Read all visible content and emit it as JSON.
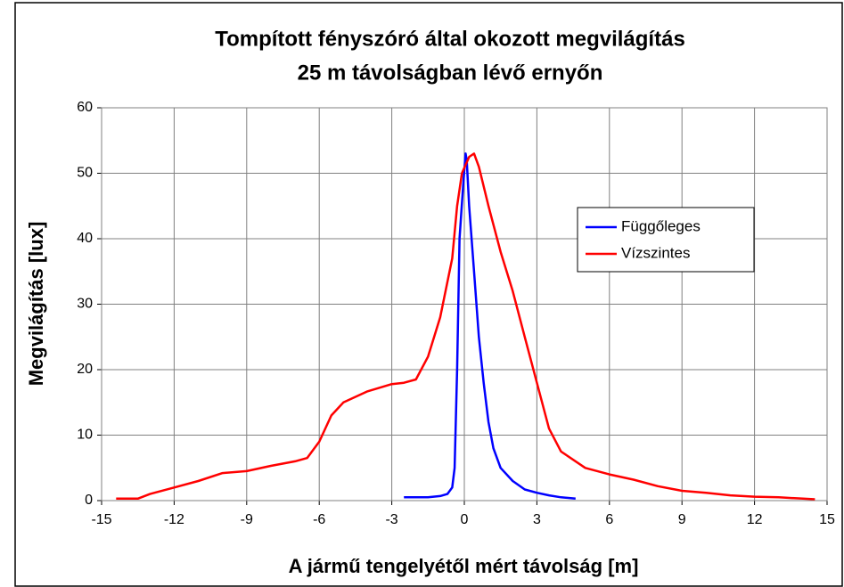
{
  "chart_data": {
    "type": "line",
    "title": [
      "Tompított fényszóró által okozott megvilágítás",
      "25 m távolságban lévő ernyőn"
    ],
    "xlabel": "A jármű tengelyétől mért távolság [m]",
    "ylabel": "Megvilágítás [lux]",
    "xlim": [
      -15,
      15
    ],
    "xticks": [
      -15,
      -12,
      -9,
      -6,
      -3,
      0,
      3,
      6,
      9,
      12,
      15
    ],
    "ylim": [
      0,
      60
    ],
    "yticks": [
      0,
      10,
      20,
      30,
      40,
      50,
      60
    ],
    "grid": true,
    "series": [
      {
        "name": "Függőleges",
        "color": "#0000ff",
        "x": [
          -2.5,
          -1.5,
          -1.0,
          -0.7,
          -0.5,
          -0.4,
          -0.3,
          -0.2,
          -0.05,
          0.05,
          0.1,
          0.2,
          0.4,
          0.6,
          0.8,
          1.0,
          1.2,
          1.5,
          2.0,
          2.5,
          3.0,
          3.5,
          4.0,
          4.6
        ],
        "values": [
          0.5,
          0.5,
          0.7,
          1,
          2,
          5,
          20,
          40,
          48,
          53,
          52,
          45,
          35,
          25,
          18,
          12,
          8,
          5,
          3,
          1.7,
          1.2,
          0.8,
          0.5,
          0.3
        ]
      },
      {
        "name": "Vízszintes",
        "color": "#ff0000",
        "x": [
          -14.4,
          -13.5,
          -13,
          -12,
          -11,
          -10,
          -9,
          -8,
          -7,
          -6.5,
          -6,
          -5.5,
          -5,
          -4,
          -3,
          -2.5,
          -2,
          -1.5,
          -1,
          -0.5,
          -0.3,
          -0.1,
          0.2,
          0.4,
          0.6,
          0.8,
          1,
          1.5,
          2,
          2.5,
          3,
          3.5,
          4,
          5,
          6,
          7,
          8,
          9,
          10,
          11,
          12,
          13,
          14,
          14.5
        ],
        "values": [
          0.3,
          0.3,
          1,
          2,
          3,
          4.2,
          4.5,
          5.3,
          6,
          6.5,
          9,
          13,
          15,
          16.7,
          17.8,
          18,
          18.5,
          22,
          28,
          37,
          45,
          50,
          52.5,
          53,
          51,
          48,
          45,
          38,
          32,
          25,
          18,
          11,
          7.5,
          5,
          4,
          3.2,
          2.2,
          1.5,
          1.2,
          0.8,
          0.6,
          0.5,
          0.3,
          0.2
        ]
      }
    ]
  }
}
